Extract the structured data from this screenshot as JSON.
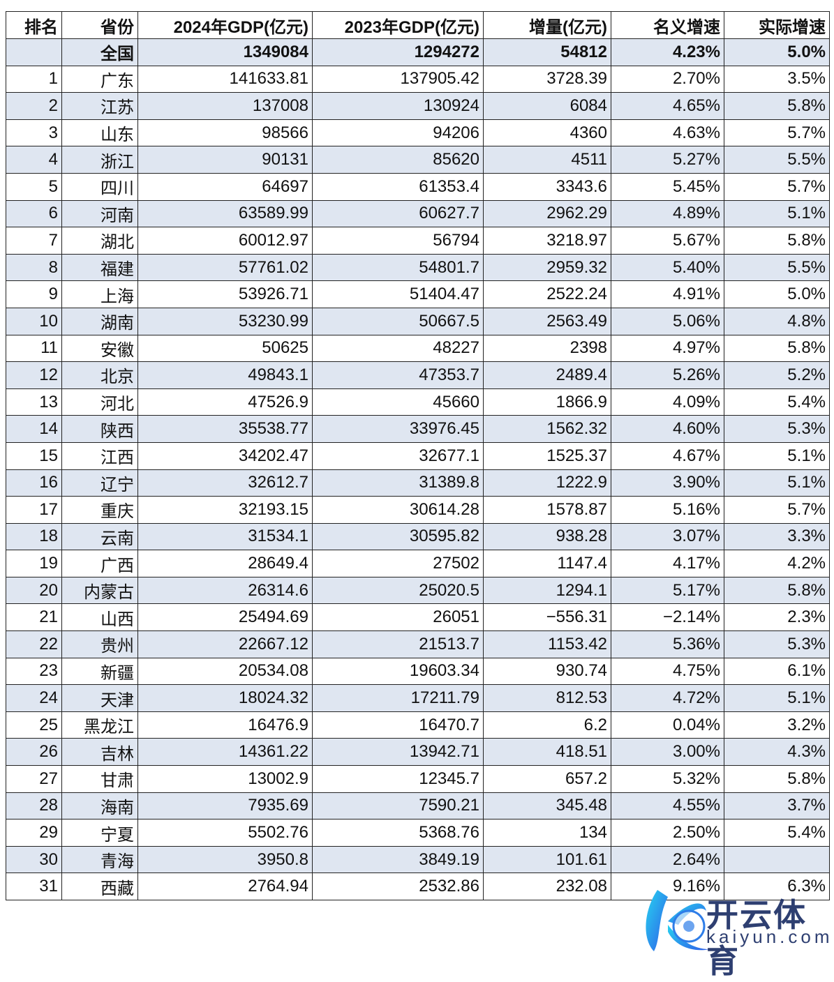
{
  "headers": [
    "排名",
    "省份",
    "2024年GDP(亿元)",
    "2023年GDP(亿元)",
    "增量(亿元)",
    "名义增速",
    "实际增速"
  ],
  "total": {
    "rank": "",
    "province": "全国",
    "gdp2024": "1349084",
    "gdp2023": "1294272",
    "increase": "54812",
    "nominal": "4.23%",
    "real": "5.0%"
  },
  "rows": [
    [
      "1",
      "广东",
      "141633.81",
      "137905.42",
      "3728.39",
      "2.70%",
      "3.5%"
    ],
    [
      "2",
      "江苏",
      "137008",
      "130924",
      "6084",
      "4.65%",
      "5.8%"
    ],
    [
      "3",
      "山东",
      "98566",
      "94206",
      "4360",
      "4.63%",
      "5.7%"
    ],
    [
      "4",
      "浙江",
      "90131",
      "85620",
      "4511",
      "5.27%",
      "5.5%"
    ],
    [
      "5",
      "四川",
      "64697",
      "61353.4",
      "3343.6",
      "5.45%",
      "5.7%"
    ],
    [
      "6",
      "河南",
      "63589.99",
      "60627.7",
      "2962.29",
      "4.89%",
      "5.1%"
    ],
    [
      "7",
      "湖北",
      "60012.97",
      "56794",
      "3218.97",
      "5.67%",
      "5.8%"
    ],
    [
      "8",
      "福建",
      "57761.02",
      "54801.7",
      "2959.32",
      "5.40%",
      "5.5%"
    ],
    [
      "9",
      "上海",
      "53926.71",
      "51404.47",
      "2522.24",
      "4.91%",
      "5.0%"
    ],
    [
      "10",
      "湖南",
      "53230.99",
      "50667.5",
      "2563.49",
      "5.06%",
      "4.8%"
    ],
    [
      "11",
      "安徽",
      "50625",
      "48227",
      "2398",
      "4.97%",
      "5.8%"
    ],
    [
      "12",
      "北京",
      "49843.1",
      "47353.7",
      "2489.4",
      "5.26%",
      "5.2%"
    ],
    [
      "13",
      "河北",
      "47526.9",
      "45660",
      "1866.9",
      "4.09%",
      "5.4%"
    ],
    [
      "14",
      "陕西",
      "35538.77",
      "33976.45",
      "1562.32",
      "4.60%",
      "5.3%"
    ],
    [
      "15",
      "江西",
      "34202.47",
      "32677.1",
      "1525.37",
      "4.67%",
      "5.1%"
    ],
    [
      "16",
      "辽宁",
      "32612.7",
      "31389.8",
      "1222.9",
      "3.90%",
      "5.1%"
    ],
    [
      "17",
      "重庆",
      "32193.15",
      "30614.28",
      "1578.87",
      "5.16%",
      "5.7%"
    ],
    [
      "18",
      "云南",
      "31534.1",
      "30595.82",
      "938.28",
      "3.07%",
      "3.3%"
    ],
    [
      "19",
      "广西",
      "28649.4",
      "27502",
      "1147.4",
      "4.17%",
      "4.2%"
    ],
    [
      "20",
      "内蒙古",
      "26314.6",
      "25020.5",
      "1294.1",
      "5.17%",
      "5.8%"
    ],
    [
      "21",
      "山西",
      "25494.69",
      "26051",
      "−556.31",
      "−2.14%",
      "2.3%"
    ],
    [
      "22",
      "贵州",
      "22667.12",
      "21513.7",
      "1153.42",
      "5.36%",
      "5.3%"
    ],
    [
      "23",
      "新疆",
      "20534.08",
      "19603.34",
      "930.74",
      "4.75%",
      "6.1%"
    ],
    [
      "24",
      "天津",
      "18024.32",
      "17211.79",
      "812.53",
      "4.72%",
      "5.1%"
    ],
    [
      "25",
      "黑龙江",
      "16476.9",
      "16470.7",
      "6.2",
      "0.04%",
      "3.2%"
    ],
    [
      "26",
      "吉林",
      "14361.22",
      "13942.71",
      "418.51",
      "3.00%",
      "4.3%"
    ],
    [
      "27",
      "甘肃",
      "13002.9",
      "12345.7",
      "657.2",
      "5.32%",
      "5.8%"
    ],
    [
      "28",
      "海南",
      "7935.69",
      "7590.21",
      "345.48",
      "4.55%",
      "3.7%"
    ],
    [
      "29",
      "宁夏",
      "5502.76",
      "5368.76",
      "134",
      "2.50%",
      "5.4%"
    ],
    [
      "30",
      "青海",
      "3950.8",
      "3849.19",
      "101.61",
      "2.64%",
      ""
    ],
    [
      "31",
      "西藏",
      "2764.94",
      "2532.86",
      "232.08",
      "9.16%",
      "6.3%"
    ]
  ],
  "colors": {
    "shade": "#dfe6f1",
    "border": "#222222",
    "watermark": "#1d2f66"
  },
  "watermark": {
    "cn": "开云体育",
    "en": "kaiyun.com"
  }
}
